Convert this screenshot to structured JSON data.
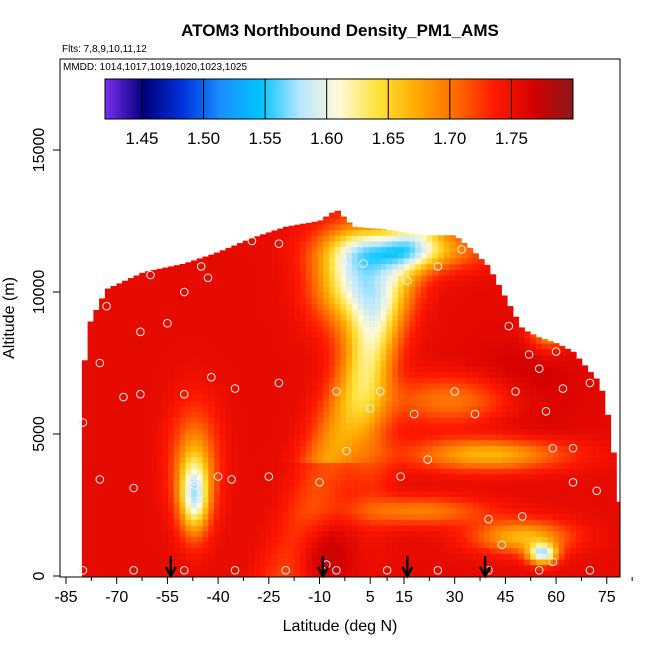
{
  "chart_data": {
    "type": "heatmap",
    "title": "ATOM3 Northbound Density_PM1_AMS",
    "subtitle_flights": "Flts: 7,8,9,10,11,12",
    "subtitle_dates": "MMDD: 1014,1017,1019,1020,1023,1025",
    "xlabel": "Latitude (deg N)",
    "ylabel": "Altitude (m)",
    "xlim": [
      -85,
      85
    ],
    "ylim": [
      0,
      17500
    ],
    "x_ticks": [
      -85,
      -70,
      -55,
      -40,
      -25,
      -10,
      5,
      15,
      30,
      45,
      60,
      75
    ],
    "y_ticks": [
      0,
      5000,
      10000,
      15000
    ],
    "colorbar": {
      "range": [
        1.42,
        1.8
      ],
      "ticks": [
        1.45,
        1.5,
        1.55,
        1.6,
        1.65,
        1.7,
        1.75
      ],
      "tick_labels": [
        "1.45",
        "1.50",
        "1.55",
        "1.60",
        "1.65",
        "1.70",
        "1.75"
      ],
      "colors": [
        "#7a2ef0",
        "#00007a",
        "#0033dd",
        "#1a90ff",
        "#00c4ff",
        "#b8e6ff",
        "#fffad8",
        "#ffe23a",
        "#ffaa00",
        "#ff6a00",
        "#ff1a00",
        "#d40000",
        "#8b1a1a"
      ]
    },
    "arrow_latitudes": [
      -54,
      -9,
      16,
      39
    ],
    "sample_points": [
      [
        -80,
        5400
      ],
      [
        -75,
        3400
      ],
      [
        -75,
        7500
      ],
      [
        -73,
        9500
      ],
      [
        -68,
        6300
      ],
      [
        -65,
        3100
      ],
      [
        -63,
        8600
      ],
      [
        -63,
        6400
      ],
      [
        -60,
        10600
      ],
      [
        -55,
        8900
      ],
      [
        -50,
        10000
      ],
      [
        -50,
        6400
      ],
      [
        -47,
        3200
      ],
      [
        -45,
        10900
      ],
      [
        -43,
        10500
      ],
      [
        -42,
        7000
      ],
      [
        -40,
        3500
      ],
      [
        -36,
        3400
      ],
      [
        -35,
        6600
      ],
      [
        -30,
        11800
      ],
      [
        -25,
        3500
      ],
      [
        -22,
        11700
      ],
      [
        -22,
        6800
      ],
      [
        -10,
        3300
      ],
      [
        -8,
        400
      ],
      [
        -5,
        6500
      ],
      [
        -3,
        11000
      ],
      [
        -2,
        4400
      ],
      [
        3,
        11000
      ],
      [
        5,
        5900
      ],
      [
        8,
        6500
      ],
      [
        10,
        9700
      ],
      [
        12,
        10400
      ],
      [
        14,
        3500
      ],
      [
        16,
        10400
      ],
      [
        18,
        5700
      ],
      [
        22,
        4100
      ],
      [
        25,
        10900
      ],
      [
        30,
        6500
      ],
      [
        32,
        11500
      ],
      [
        36,
        5700
      ],
      [
        40,
        2000
      ],
      [
        44,
        1100
      ],
      [
        46,
        8800
      ],
      [
        48,
        6500
      ],
      [
        50,
        2100
      ],
      [
        52,
        7800
      ],
      [
        55,
        7300
      ],
      [
        57,
        5800
      ],
      [
        59,
        500
      ],
      [
        59,
        4500
      ],
      [
        60,
        7900
      ],
      [
        62,
        6600
      ],
      [
        65,
        4500
      ],
      [
        65,
        3300
      ],
      [
        70,
        6800
      ],
      [
        72,
        3000
      ],
      [
        -80,
        200
      ],
      [
        -65,
        200
      ],
      [
        -50,
        200
      ],
      [
        -35,
        200
      ],
      [
        -20,
        200
      ],
      [
        -5,
        200
      ],
      [
        10,
        200
      ],
      [
        25,
        200
      ],
      [
        40,
        200
      ],
      [
        55,
        200
      ],
      [
        70,
        200
      ],
      [
        80,
        200
      ]
    ]
  }
}
